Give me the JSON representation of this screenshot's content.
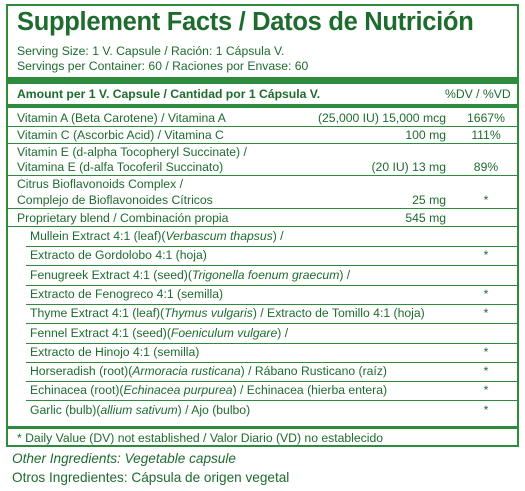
{
  "title": "Supplement Facts / Datos de Nutrición",
  "serving_size": "Serving Size: 1 V. Capsule / Ración: 1 Cápsula V.",
  "servings_per_container": "Servings per Container: 60 / Raciones por Envase: 60",
  "header": {
    "amount": "Amount per 1 V. Capsule / Cantidad por 1 Cápsula V.",
    "dv": "%DV / %VD"
  },
  "rows": [
    {
      "name": "Vitamin A (Beta Carotene) / Vitamina A",
      "amount": "(25,000 IU) 15,000 mcg",
      "dv": "1667%"
    },
    {
      "name": "Vitamin C (Ascorbic Acid) / Vitamina C",
      "amount": "100 mg",
      "dv": "111%"
    },
    {
      "name": "Vitamin E (d-alpha Tocopheryl Succinate) /",
      "amount": "",
      "dv": ""
    },
    {
      "name": "Vitamina E (d-alfa Tocoferil Succinato)",
      "amount": "(20 IU) 13 mg",
      "dv": "89%"
    },
    {
      "name": "Citrus Bioflavonoids Complex /",
      "amount": "",
      "dv": ""
    },
    {
      "name": "Complejo de Bioflavonoides Cítricos",
      "amount": "25 mg",
      "dv": "*"
    },
    {
      "name": "Proprietary blend / Combinación propia",
      "amount": "545 mg",
      "dv": ""
    }
  ],
  "blend": [
    {
      "pre": "Mullein Extract 4:1 (leaf)(",
      "latin": "Verbascum thapsus",
      "post": ") /",
      "dv": ""
    },
    {
      "pre": "Extracto de Gordolobo 4:1 (hoja)",
      "latin": "",
      "post": "",
      "dv": "*"
    },
    {
      "pre": "Fenugreek Extract 4:1 (seed)(",
      "latin": "Trigonella foenum graecum",
      "post": ") /",
      "dv": ""
    },
    {
      "pre": "Extracto de Fenogreco 4:1 (semilla)",
      "latin": "",
      "post": "",
      "dv": "*"
    },
    {
      "pre": "Thyme Extract 4:1 (leaf)(",
      "latin": "Thymus vulgaris",
      "post": ") / Extracto  de Tomillo 4:1 (hoja)",
      "dv": "*"
    },
    {
      "pre": "Fennel Extract 4:1 (seed)(",
      "latin": "Foeniculum vulgare",
      "post": ") /",
      "dv": ""
    },
    {
      "pre": "Extracto de Hinojo 4:1 (semilla)",
      "latin": "",
      "post": "",
      "dv": "*"
    },
    {
      "pre": "Horseradish (root)(",
      "latin": "Armoracia rusticana",
      "post": ") / Rábano Rusticano (raíz)",
      "dv": "*"
    },
    {
      "pre": "Echinacea (root)(",
      "latin": "Echinacea purpurea",
      "post": ") / Echinacea (hierba entera)",
      "dv": "*"
    },
    {
      "pre": "Garlic (bulb)(",
      "latin": "allium sativum",
      "post": ") / Ajo (bulbo)",
      "dv": "*"
    }
  ],
  "footnote": "* Daily Value (DV) not established / Valor Diario (VD) no establecido",
  "other_en": "Other Ingredients: Vegetable capsule",
  "other_es": "Otros Ingredientes: Cápsula de origen vegetal",
  "colors": {
    "text": "#1e6b2e",
    "rule": "#2e8b3e"
  }
}
